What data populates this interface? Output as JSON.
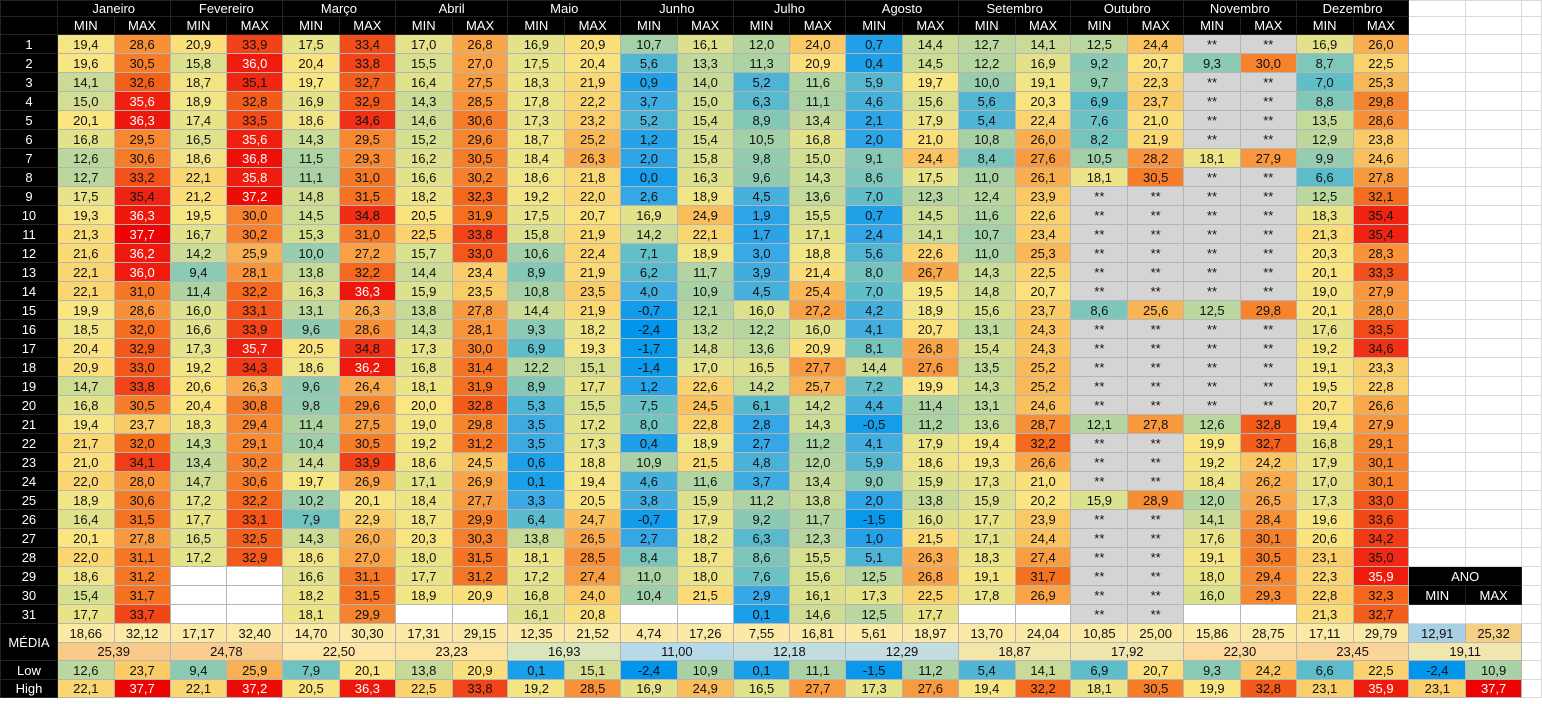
{
  "months": [
    "Janeiro",
    "Fevereiro",
    "Março",
    "Abril",
    "Maio",
    "Junho",
    "Julho",
    "Agosto",
    "Setembro",
    "Outubro",
    "Novembro",
    "Dezembro"
  ],
  "sub_headers": [
    "MIN",
    "MAX"
  ],
  "row_labels": [
    "1",
    "2",
    "3",
    "4",
    "5",
    "6",
    "7",
    "8",
    "9",
    "10",
    "11",
    "12",
    "13",
    "14",
    "15",
    "16",
    "17",
    "18",
    "19",
    "20",
    "21",
    "22",
    "23",
    "24",
    "25",
    "26",
    "27",
    "28",
    "29",
    "30",
    "31"
  ],
  "missing_mark": "**",
  "data": [
    [
      "19,4",
      "28,6",
      "20,9",
      "33,9",
      "17,5",
      "33,4",
      "17,0",
      "26,8",
      "16,9",
      "20,9",
      "10,7",
      "16,1",
      "12,0",
      "24,0",
      "0,7",
      "14,4",
      "12,7",
      "14,1",
      "12,5",
      "24,4",
      "**",
      "**",
      "16,9",
      "26,0"
    ],
    [
      "19,6",
      "30,5",
      "15,8",
      "36,0",
      "20,4",
      "33,8",
      "15,5",
      "27,0",
      "17,5",
      "20,4",
      "5,6",
      "13,3",
      "11,3",
      "20,9",
      "0,4",
      "14,5",
      "12,2",
      "16,9",
      "9,2",
      "20,7",
      "9,3",
      "30,0",
      "8,7",
      "22,5"
    ],
    [
      "14,1",
      "32,6",
      "18,7",
      "35,1",
      "19,7",
      "32,7",
      "16,4",
      "27,5",
      "18,3",
      "21,9",
      "0,9",
      "14,0",
      "5,2",
      "11,6",
      "5,9",
      "19,7",
      "10,0",
      "19,1",
      "9,7",
      "22,3",
      "**",
      "**",
      "7,0",
      "25,3"
    ],
    [
      "15,0",
      "35,6",
      "18,9",
      "32,8",
      "16,9",
      "32,9",
      "14,3",
      "28,5",
      "17,8",
      "22,2",
      "3,7",
      "15,0",
      "6,3",
      "11,1",
      "4,6",
      "15,6",
      "5,6",
      "20,3",
      "6,9",
      "23,7",
      "**",
      "**",
      "8,8",
      "29,8"
    ],
    [
      "20,1",
      "36,3",
      "17,4",
      "33,5",
      "18,6",
      "34,6",
      "14,6",
      "30,6",
      "17,3",
      "23,2",
      "5,2",
      "15,4",
      "8,9",
      "13,4",
      "2,1",
      "17,9",
      "5,4",
      "22,4",
      "7,6",
      "21,0",
      "**",
      "**",
      "13,5",
      "28,6"
    ],
    [
      "16,8",
      "29,5",
      "16,5",
      "35,6",
      "14,3",
      "29,5",
      "15,2",
      "29,6",
      "18,7",
      "25,2",
      "1,2",
      "15,4",
      "10,5",
      "16,8",
      "2,0",
      "21,0",
      "10,8",
      "26,0",
      "8,2",
      "21,9",
      "**",
      "**",
      "12,9",
      "23,8"
    ],
    [
      "12,6",
      "30,6",
      "18,6",
      "36,8",
      "11,5",
      "29,3",
      "16,2",
      "30,5",
      "18,4",
      "26,3",
      "2,0",
      "15,8",
      "9,8",
      "15,0",
      "9,1",
      "24,4",
      "8,4",
      "27,6",
      "10,5",
      "28,2",
      "18,1",
      "27,9",
      "9,9",
      "24,6"
    ],
    [
      "12,7",
      "33,2",
      "22,1",
      "35,8",
      "11,1",
      "31,0",
      "16,6",
      "30,2",
      "18,6",
      "21,8",
      "0,0",
      "16,3",
      "9,6",
      "14,3",
      "8,6",
      "17,5",
      "11,0",
      "26,1",
      "18,1",
      "30,5",
      "**",
      "**",
      "6,6",
      "27,8"
    ],
    [
      "17,5",
      "35,4",
      "21,2",
      "37,2",
      "14,8",
      "31,5",
      "18,2",
      "32,3",
      "19,2",
      "22,0",
      "2,6",
      "18,9",
      "4,5",
      "13,6",
      "7,0",
      "12,3",
      "12,4",
      "23,9",
      "**",
      "**",
      "**",
      "**",
      "12,5",
      "32,1"
    ],
    [
      "19,3",
      "36,3",
      "19,5",
      "30,0",
      "14,5",
      "34,8",
      "20,5",
      "31,9",
      "17,5",
      "20,7",
      "16,9",
      "24,9",
      "1,9",
      "15,5",
      "0,7",
      "14,5",
      "11,6",
      "22,6",
      "**",
      "**",
      "**",
      "**",
      "18,3",
      "35,4"
    ],
    [
      "21,3",
      "37,7",
      "16,7",
      "30,2",
      "15,3",
      "31,0",
      "22,5",
      "33,8",
      "15,8",
      "21,9",
      "14,2",
      "22,1",
      "1,7",
      "17,1",
      "2,4",
      "14,1",
      "10,7",
      "23,4",
      "**",
      "**",
      "**",
      "**",
      "21,3",
      "35,4"
    ],
    [
      "21,6",
      "36,2",
      "14,2",
      "25,9",
      "10,0",
      "27,2",
      "15,7",
      "33,0",
      "10,6",
      "22,4",
      "7,1",
      "18,9",
      "3,0",
      "18,8",
      "5,6",
      "22,6",
      "11,0",
      "25,3",
      "**",
      "**",
      "**",
      "**",
      "20,3",
      "28,3"
    ],
    [
      "22,1",
      "36,0",
      "9,4",
      "28,1",
      "13,8",
      "32,2",
      "14,4",
      "23,4",
      "8,9",
      "21,9",
      "6,2",
      "11,7",
      "3,9",
      "21,4",
      "8,0",
      "26,7",
      "14,3",
      "22,5",
      "**",
      "**",
      "**",
      "**",
      "20,1",
      "33,3"
    ],
    [
      "22,1",
      "31,0",
      "11,4",
      "32,2",
      "16,3",
      "36,3",
      "15,9",
      "23,5",
      "10,8",
      "23,5",
      "4,0",
      "10,9",
      "4,5",
      "25,4",
      "7,0",
      "19,5",
      "14,8",
      "20,7",
      "**",
      "**",
      "**",
      "**",
      "19,0",
      "27,9"
    ],
    [
      "19,9",
      "28,6",
      "16,0",
      "33,1",
      "13,1",
      "26,3",
      "13,8",
      "27,8",
      "14,4",
      "21,9",
      "-0,7",
      "12,1",
      "16,0",
      "27,2",
      "4,2",
      "18,9",
      "15,6",
      "23,7",
      "8,6",
      "25,6",
      "12,5",
      "29,8",
      "20,1",
      "28,0"
    ],
    [
      "18,5",
      "32,0",
      "16,6",
      "33,9",
      "9,6",
      "28,6",
      "14,3",
      "28,1",
      "9,3",
      "18,2",
      "-2,4",
      "13,2",
      "12,2",
      "16,0",
      "4,1",
      "20,7",
      "13,1",
      "24,3",
      "**",
      "**",
      "**",
      "**",
      "17,6",
      "33,5"
    ],
    [
      "20,4",
      "32,9",
      "17,3",
      "35,7",
      "20,5",
      "34,8",
      "17,3",
      "30,0",
      "6,9",
      "19,3",
      "-1,7",
      "14,8",
      "13,6",
      "20,9",
      "8,1",
      "26,8",
      "15,4",
      "24,3",
      "**",
      "**",
      "**",
      "**",
      "19,2",
      "34,6"
    ],
    [
      "20,9",
      "33,0",
      "19,2",
      "34,3",
      "18,6",
      "36,2",
      "16,8",
      "31,4",
      "12,2",
      "15,1",
      "-1,4",
      "17,0",
      "16,5",
      "27,7",
      "14,4",
      "27,6",
      "13,5",
      "25,2",
      "**",
      "**",
      "**",
      "**",
      "19,1",
      "23,3"
    ],
    [
      "14,7",
      "33,8",
      "20,6",
      "26,3",
      "9,6",
      "26,4",
      "18,1",
      "31,9",
      "8,9",
      "17,7",
      "1,2",
      "22,6",
      "14,2",
      "25,7",
      "7,2",
      "19,9",
      "14,3",
      "25,2",
      "**",
      "**",
      "**",
      "**",
      "19,5",
      "22,8"
    ],
    [
      "16,8",
      "30,5",
      "20,4",
      "30,8",
      "9,8",
      "29,6",
      "20,0",
      "32,8",
      "5,3",
      "15,5",
      "7,5",
      "24,5",
      "6,1",
      "14,2",
      "4,4",
      "11,4",
      "13,1",
      "24,6",
      "**",
      "**",
      "**",
      "**",
      "20,7",
      "26,6"
    ],
    [
      "19,4",
      "23,7",
      "18,3",
      "29,4",
      "11,4",
      "27,5",
      "19,0",
      "29,8",
      "3,5",
      "17,2",
      "8,0",
      "22,8",
      "2,8",
      "14,3",
      "-0,5",
      "11,2",
      "13,6",
      "28,7",
      "12,1",
      "27,8",
      "12,6",
      "32,8",
      "19,4",
      "27,9"
    ],
    [
      "21,7",
      "32,0",
      "14,3",
      "29,1",
      "10,4",
      "30,5",
      "19,2",
      "31,2",
      "3,5",
      "17,3",
      "0,4",
      "18,9",
      "2,7",
      "11,2",
      "4,1",
      "17,9",
      "19,4",
      "32,2",
      "**",
      "**",
      "19,9",
      "32,7",
      "16,8",
      "29,1"
    ],
    [
      "21,0",
      "34,1",
      "13,4",
      "30,2",
      "14,4",
      "33,9",
      "18,6",
      "24,5",
      "0,6",
      "18,8",
      "10,9",
      "21,5",
      "4,8",
      "12,0",
      "5,9",
      "18,6",
      "19,3",
      "26,6",
      "**",
      "**",
      "19,2",
      "24,2",
      "17,9",
      "30,1"
    ],
    [
      "22,0",
      "28,0",
      "14,7",
      "30,6",
      "19,7",
      "26,9",
      "17,1",
      "26,9",
      "0,1",
      "19,4",
      "4,6",
      "11,6",
      "3,7",
      "13,4",
      "9,0",
      "15,9",
      "17,3",
      "21,0",
      "**",
      "**",
      "18,4",
      "26,2",
      "17,0",
      "30,1"
    ],
    [
      "18,9",
      "30,6",
      "17,2",
      "32,2",
      "10,2",
      "20,1",
      "18,4",
      "27,7",
      "3,3",
      "20,5",
      "3,8",
      "15,9",
      "11,2",
      "13,8",
      "2,0",
      "13,8",
      "15,9",
      "20,2",
      "15,9",
      "28,9",
      "12,0",
      "26,5",
      "17,3",
      "33,0"
    ],
    [
      "16,4",
      "31,5",
      "17,7",
      "33,1",
      "7,9",
      "22,9",
      "18,7",
      "29,9",
      "6,4",
      "24,7",
      "-0,7",
      "17,9",
      "9,2",
      "11,7",
      "-1,5",
      "16,0",
      "17,7",
      "23,9",
      "**",
      "**",
      "14,1",
      "28,4",
      "19,6",
      "33,6"
    ],
    [
      "20,1",
      "27,8",
      "16,5",
      "32,5",
      "14,3",
      "26,0",
      "20,3",
      "30,3",
      "13,8",
      "26,5",
      "2,7",
      "18,2",
      "6,3",
      "12,3",
      "1,0",
      "21,5",
      "17,1",
      "24,4",
      "**",
      "**",
      "17,6",
      "30,1",
      "20,6",
      "34,2"
    ],
    [
      "22,0",
      "31,1",
      "17,2",
      "32,9",
      "18,6",
      "27,0",
      "18,0",
      "31,5",
      "18,1",
      "28,5",
      "8,4",
      "18,7",
      "8,6",
      "15,5",
      "5,1",
      "26,3",
      "18,3",
      "27,4",
      "**",
      "**",
      "19,1",
      "30,5",
      "23,1",
      "35,0"
    ],
    [
      "18,6",
      "31,2",
      "",
      "",
      "16,6",
      "31,1",
      "17,7",
      "31,2",
      "17,2",
      "27,4",
      "11,0",
      "18,0",
      "7,6",
      "15,6",
      "12,5",
      "26,8",
      "19,1",
      "31,7",
      "**",
      "**",
      "18,0",
      "29,4",
      "22,3",
      "35,9"
    ],
    [
      "15,4",
      "31,7",
      "",
      "",
      "18,2",
      "31,5",
      "18,9",
      "20,9",
      "16,8",
      "24,0",
      "10,4",
      "21,5",
      "2,9",
      "16,1",
      "17,3",
      "22,5",
      "17,8",
      "26,9",
      "**",
      "**",
      "16,0",
      "29,3",
      "22,8",
      "32,3"
    ],
    [
      "17,7",
      "33,7",
      "",
      "",
      "18,1",
      "29,9",
      "",
      "",
      "16,1",
      "20,8",
      "",
      "",
      "0,1",
      "14,6",
      "12,5",
      "17,7",
      "",
      "",
      "**",
      "**",
      "",
      "",
      "21,3",
      "32,7"
    ]
  ],
  "summary": {
    "media_label": "MÉDIA",
    "low_label": "Low",
    "high_label": "High",
    "media": [
      "18,66",
      "32,12",
      "17,17",
      "32,40",
      "14,70",
      "30,30",
      "17,31",
      "29,15",
      "12,35",
      "21,52",
      "4,74",
      "17,26",
      "7,55",
      "16,81",
      "5,61",
      "18,97",
      "13,70",
      "24,04",
      "10,85",
      "25,00",
      "15,86",
      "28,75",
      "17,11",
      "29,79"
    ],
    "media_avg": [
      "25,39",
      "24,78",
      "22,50",
      "23,23",
      "16,93",
      "11,00",
      "12,18",
      "12,29",
      "18,87",
      "17,92",
      "22,30",
      "23,45"
    ],
    "low": [
      "12,6",
      "23,7",
      "9,4",
      "25,9",
      "7,9",
      "20,1",
      "13,8",
      "20,9",
      "0,1",
      "15,1",
      "-2,4",
      "10,9",
      "0,1",
      "11,1",
      "-1,5",
      "11,2",
      "5,4",
      "14,1",
      "6,9",
      "20,7",
      "9,3",
      "24,2",
      "6,6",
      "22,5"
    ],
    "high": [
      "22,1",
      "37,7",
      "22,1",
      "37,2",
      "20,5",
      "36,3",
      "22,5",
      "33,8",
      "19,2",
      "28,5",
      "16,9",
      "24,9",
      "16,5",
      "27,7",
      "17,3",
      "27,6",
      "19,4",
      "32,2",
      "18,1",
      "30,5",
      "19,9",
      "32,8",
      "23,1",
      "35,9"
    ]
  },
  "year": {
    "title": "ANO",
    "min_label": "MIN",
    "max_label": "MAX",
    "media_min": "12,91",
    "media_max": "25,32",
    "media_avg": "19,11",
    "low_min": "-2,4",
    "low_max": "10,9",
    "high_min": "23,1",
    "high_max": "37,7"
  }
}
